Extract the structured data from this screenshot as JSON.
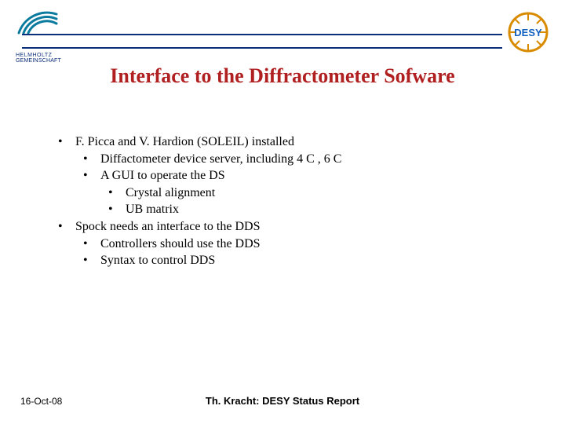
{
  "title": "Interface to the Diffractometer Sofware",
  "bullets": [
    {
      "level": 0,
      "text": "F. Picca and V. Hardion (SOLEIL) installed"
    },
    {
      "level": 1,
      "text": "Diffactometer device server, including 4 C , 6 C"
    },
    {
      "level": 1,
      "text": "A GUI to operate the DS"
    },
    {
      "level": 2,
      "text": "Crystal alignment"
    },
    {
      "level": 2,
      "text": "UB matrix"
    },
    {
      "level": 0,
      "text": "Spock needs an interface to the DDS"
    },
    {
      "level": 1,
      "text": "Controllers should use the DDS"
    },
    {
      "level": 1,
      "text": "Syntax to control DDS"
    }
  ],
  "footer": {
    "date": "16-Oct-08",
    "title": "Th. Kracht: DESY Status Report"
  },
  "logos": {
    "helmholtz_top": "HELMHOLTZ",
    "helmholtz_bottom": "GEMEINSCHAFT",
    "desy": "DESY"
  },
  "colors": {
    "title": "#b02020",
    "rule": "#0a2e7a",
    "body": "#000000",
    "helmholtz_arc": "#0a7a9e",
    "desy_ring": "#d98b00",
    "desy_text": "#1060c0"
  },
  "fonts": {
    "title_size": 26,
    "body_size": 16,
    "footer_size": 12
  }
}
